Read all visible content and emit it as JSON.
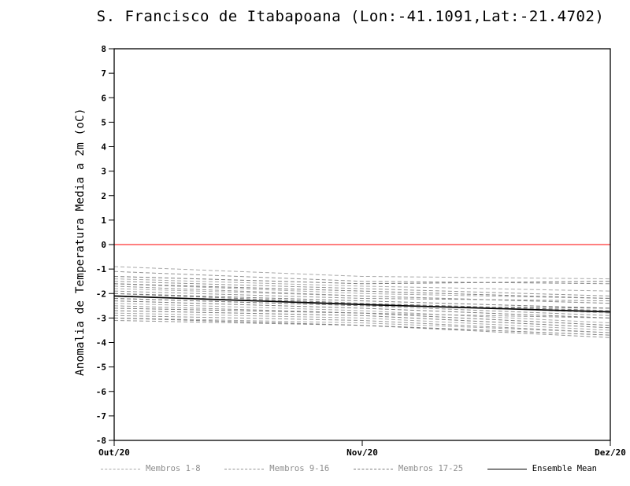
{
  "chart_data": {
    "type": "line",
    "title": "S. Francisco de Itabapoana (Lon:-41.1091,Lat:-21.4702)",
    "ylabel": "Anomalia de Temperatura Media a 2m (oC)",
    "xlabel": "",
    "ylim": [
      -8,
      8
    ],
    "y_tick_step": 1,
    "x": [
      "Out/20",
      "Nov/20",
      "Dez/20"
    ],
    "grid": false,
    "legend_position": "bottom",
    "reference_line": {
      "value": 0,
      "color": "#ff3333"
    },
    "member_groups": [
      {
        "name": "Membros 1-8",
        "color": "#a8a8a8",
        "line_style": "dashed",
        "members": [
          [
            -0.9,
            -1.3,
            -1.4
          ],
          [
            -1.4,
            -1.7,
            -1.9
          ],
          [
            -1.8,
            -2.1,
            -2.4
          ],
          [
            -2.1,
            -2.4,
            -2.8
          ],
          [
            -2.4,
            -2.7,
            -3.2
          ],
          [
            -2.8,
            -3.0,
            -3.5
          ],
          [
            -1.6,
            -2.0,
            -2.2
          ],
          [
            -3.0,
            -3.2,
            -3.6
          ]
        ]
      },
      {
        "name": "Membros 9-16",
        "color": "#949494",
        "line_style": "dashed",
        "members": [
          [
            -1.1,
            -1.5,
            -1.6
          ],
          [
            -1.5,
            -1.8,
            -2.1
          ],
          [
            -1.9,
            -2.2,
            -2.3
          ],
          [
            -2.2,
            -2.5,
            -2.9
          ],
          [
            -2.5,
            -2.8,
            -3.0
          ],
          [
            -2.9,
            -3.1,
            -3.6
          ],
          [
            -1.7,
            -2.1,
            -2.4
          ],
          [
            -3.1,
            -3.3,
            -3.8
          ]
        ]
      },
      {
        "name": "Membros 17-25",
        "color": "#7e7e7e",
        "line_style": "dashed",
        "members": [
          [
            -1.3,
            -1.6,
            -1.5
          ],
          [
            -1.6,
            -1.9,
            -2.2
          ],
          [
            -2.0,
            -2.3,
            -2.6
          ],
          [
            -2.3,
            -2.6,
            -3.0
          ],
          [
            -2.6,
            -2.8,
            -3.3
          ],
          [
            -2.7,
            -2.9,
            -3.4
          ],
          [
            -2.0,
            -2.4,
            -2.7
          ],
          [
            -2.2,
            -2.5,
            -2.6
          ],
          [
            -3.0,
            -3.3,
            -3.7
          ]
        ]
      }
    ],
    "ensemble_mean": {
      "name": "Ensemble Mean",
      "color": "#000000",
      "line_style": "solid",
      "values": [
        -2.1,
        -2.45,
        -2.75
      ]
    }
  }
}
